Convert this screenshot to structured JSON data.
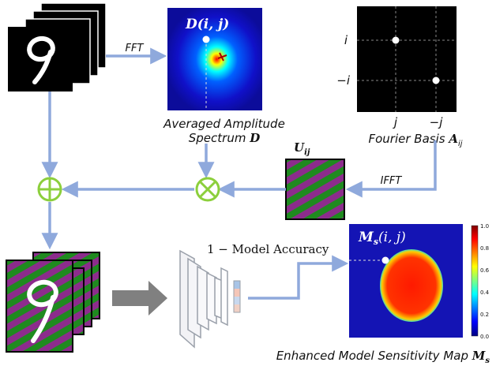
{
  "labels": {
    "fft": "FFT",
    "ifft": "IFFT",
    "avg_amp_line1": "Averaged Amplitude",
    "avg_amp_line2_text": "Spectrum ",
    "avg_amp_line2_symbol": "D",
    "fourier_basis_text": "Fourier Basis ",
    "fourier_basis_symbol": "A",
    "fourier_basis_sub": "ij",
    "d_ij": "D(i, j)",
    "u_ij_symbol": "U",
    "u_ij_sub": "ij",
    "model_accuracy": "1 − Model Accuracy",
    "ms_ij_symbol": "M",
    "ms_ij_sub": "s",
    "ms_ij_args": "(i, j)",
    "enhanced_text": "Enhanced Model Sensitivity Map ",
    "enhanced_symbol": "M",
    "enhanced_sub": "s",
    "axis_i": "i",
    "axis_neg_i": "−i",
    "axis_j": "j",
    "axis_neg_j": "−j"
  },
  "colorbar": {
    "ticks": [
      "1.0",
      "0.8",
      "0.6",
      "0.4",
      "0.2",
      "0.0"
    ]
  },
  "colors": {
    "arrow": "#8fa9dc",
    "operator": "#8ccf3c",
    "stripe_green": "#1f8a1f",
    "stripe_purple": "#8c2c8c"
  }
}
